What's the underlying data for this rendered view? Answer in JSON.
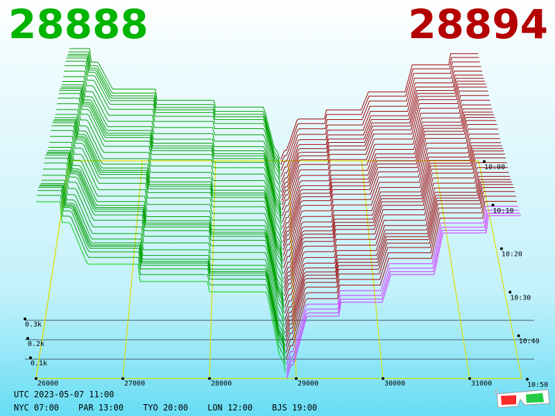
{
  "prices": {
    "bid": "28888",
    "ask": "28894"
  },
  "chart_data": {
    "type": "area",
    "x": {
      "ticks": [
        26000,
        27000,
        28000,
        29000,
        30000,
        31000
      ],
      "range": [
        26000,
        31600
      ]
    },
    "volume_labels": [
      "0.1k",
      "0.2k",
      "0.3k"
    ],
    "time_labels": [
      "10:00",
      "10:10",
      "10:20",
      "10:30",
      "10:40",
      "10:50"
    ],
    "series": [
      {
        "side": "bid",
        "color": "#00b400"
      },
      {
        "side": "ask",
        "color": "#b40000"
      }
    ]
  },
  "footer": {
    "utc": "UTC 2023-05-07 11:00",
    "zones": [
      "NYC 07:00",
      "PAR 13:00",
      "TYO 20:00",
      "LON 12:00",
      "BJS 19:00"
    ]
  },
  "icons": {
    "glasses": "3d-glasses-icon"
  }
}
